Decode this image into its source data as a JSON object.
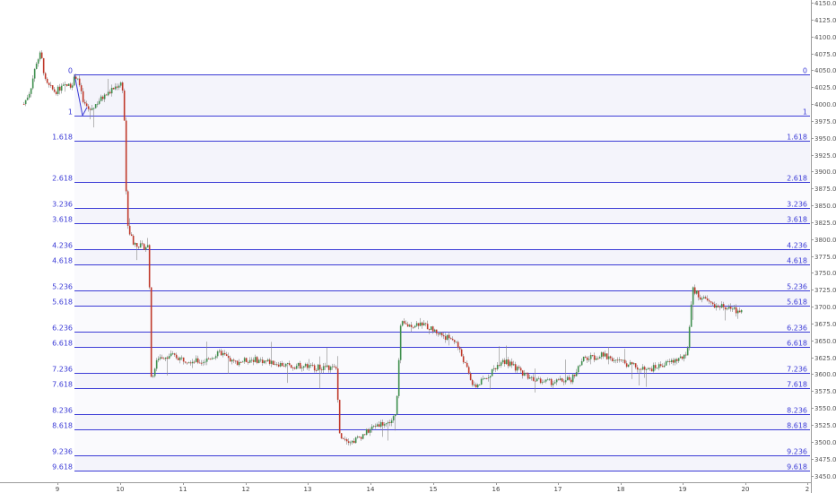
{
  "chart_data": {
    "type": "candlestick",
    "title": "",
    "xlabel": "",
    "ylabel": "",
    "ylim": [
      3445,
      4155
    ],
    "x_ticks": [
      "9",
      "10",
      "11",
      "12",
      "13",
      "14",
      "15",
      "16",
      "17",
      "18",
      "19",
      "20",
      "2"
    ],
    "y_ticks": [
      "3450.00",
      "3475.00",
      "3500.00",
      "3525.00",
      "3550.00",
      "3575.00",
      "3600.00",
      "3625.00",
      "3650.00",
      "3675.00",
      "3700.00",
      "3725.00",
      "3750.00",
      "3775.00",
      "3800.00",
      "3825.00",
      "3850.00",
      "3875.00",
      "3900.00",
      "3925.00",
      "3950.00",
      "3975.00",
      "4000.00",
      "4025.00",
      "4050.00",
      "4075.00",
      "4100.00",
      "4125.00",
      "4150.00"
    ],
    "fib_levels": [
      {
        "label": "0",
        "price": 4044
      },
      {
        "label": "1",
        "price": 3983
      },
      {
        "label": "1.618",
        "price": 3945
      },
      {
        "label": "2.618",
        "price": 3884
      },
      {
        "label": "3.236",
        "price": 3846
      },
      {
        "label": "3.618",
        "price": 3823
      },
      {
        "label": "4.236",
        "price": 3785
      },
      {
        "label": "4.618",
        "price": 3762
      },
      {
        "label": "5.236",
        "price": 3724
      },
      {
        "label": "5.618",
        "price": 3701
      },
      {
        "label": "6.236",
        "price": 3663
      },
      {
        "label": "6.618",
        "price": 3640
      },
      {
        "label": "7.236",
        "price": 3602
      },
      {
        "label": "7.618",
        "price": 3579
      },
      {
        "label": "8.236",
        "price": 3541
      },
      {
        "label": "8.618",
        "price": 3518
      },
      {
        "label": "9.236",
        "price": 3480
      },
      {
        "label": "9.618",
        "price": 3457
      }
    ],
    "price_path": [
      [
        8.45,
        4000
      ],
      [
        8.55,
        4020
      ],
      [
        8.65,
        4062
      ],
      [
        8.72,
        4075
      ],
      [
        8.8,
        4030
      ],
      [
        8.95,
        4018
      ],
      [
        9.05,
        4025
      ],
      [
        9.2,
        4028
      ],
      [
        9.3,
        4044
      ],
      [
        9.4,
        4002
      ],
      [
        9.5,
        3990
      ],
      [
        9.65,
        4005
      ],
      [
        9.8,
        4016
      ],
      [
        9.95,
        4028
      ],
      [
        10.02,
        4032
      ],
      [
        10.05,
        4000
      ],
      [
        10.1,
        3820
      ],
      [
        10.2,
        3795
      ],
      [
        10.35,
        3788
      ],
      [
        10.45,
        3790
      ],
      [
        10.48,
        3590
      ],
      [
        10.6,
        3625
      ],
      [
        10.8,
        3628
      ],
      [
        11.0,
        3622
      ],
      [
        11.3,
        3618
      ],
      [
        11.6,
        3632
      ],
      [
        11.8,
        3617
      ],
      [
        12.1,
        3622
      ],
      [
        12.4,
        3618
      ],
      [
        12.7,
        3612
      ],
      [
        12.9,
        3613
      ],
      [
        13.1,
        3610
      ],
      [
        13.3,
        3610
      ],
      [
        13.45,
        3608
      ],
      [
        13.5,
        3510
      ],
      [
        13.7,
        3500
      ],
      [
        13.9,
        3512
      ],
      [
        14.1,
        3526
      ],
      [
        14.3,
        3528
      ],
      [
        14.4,
        3540
      ],
      [
        14.48,
        3675
      ],
      [
        14.6,
        3672
      ],
      [
        14.8,
        3676
      ],
      [
        15.0,
        3665
      ],
      [
        15.2,
        3655
      ],
      [
        15.35,
        3650
      ],
      [
        15.45,
        3628
      ],
      [
        15.65,
        3580
      ],
      [
        15.85,
        3595
      ],
      [
        16.1,
        3622
      ],
      [
        16.3,
        3610
      ],
      [
        16.5,
        3598
      ],
      [
        16.7,
        3590
      ],
      [
        16.9,
        3588
      ],
      [
        17.2,
        3592
      ],
      [
        17.4,
        3622
      ],
      [
        17.7,
        3628
      ],
      [
        17.95,
        3620
      ],
      [
        18.2,
        3612
      ],
      [
        18.4,
        3605
      ],
      [
        18.6,
        3612
      ],
      [
        18.8,
        3618
      ],
      [
        18.95,
        3624
      ],
      [
        19.05,
        3625
      ],
      [
        19.15,
        3725
      ],
      [
        19.3,
        3712
      ],
      [
        19.5,
        3702
      ],
      [
        19.7,
        3698
      ],
      [
        19.85,
        3694
      ],
      [
        19.95,
        3692
      ]
    ]
  }
}
